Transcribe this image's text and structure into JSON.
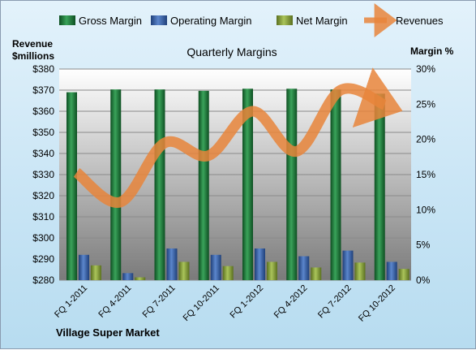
{
  "chart_data": {
    "type": "bar",
    "title": "Quarterly Margins",
    "footer": "Village Super Market",
    "left_axis_label_line1": "Revenue",
    "left_axis_label_line2": "$millions",
    "right_axis_label": "Margin %",
    "categories": [
      "FQ 1-2011",
      "FQ 4-2011",
      "FQ 7-2011",
      "FQ 10-2011",
      "FQ 1-2012",
      "FQ 4-2012",
      "FQ 7-2012",
      "FQ 10-2012"
    ],
    "series": [
      {
        "name": "Gross Margin",
        "axis": "right",
        "type": "bar",
        "color": "#1f7a3a",
        "values": [
          26.7,
          27.1,
          27.1,
          26.9,
          27.2,
          27.2,
          27.1,
          26.5
        ]
      },
      {
        "name": "Operating Margin",
        "axis": "right",
        "type": "bar",
        "color": "#3a63a8",
        "values": [
          3.6,
          1.0,
          4.5,
          3.6,
          4.5,
          3.4,
          4.2,
          2.6
        ]
      },
      {
        "name": "Net Margin",
        "axis": "right",
        "type": "bar",
        "color": "#8ca63e",
        "values": [
          2.1,
          0.4,
          2.6,
          2.0,
          2.6,
          1.8,
          2.5,
          1.6
        ]
      },
      {
        "name": "Revenues",
        "axis": "left",
        "type": "line",
        "color": "#e8853b",
        "values": [
          331,
          317,
          345,
          339,
          360,
          341,
          370,
          363
        ]
      }
    ],
    "y_left": {
      "min": 280,
      "max": 380,
      "step": 10,
      "prefix": "$",
      "ticks": [
        "$280",
        "$290",
        "$300",
        "$310",
        "$320",
        "$330",
        "$340",
        "$350",
        "$360",
        "$370",
        "$380"
      ]
    },
    "y_right": {
      "min": 0,
      "max": 30,
      "step": 5,
      "ticks": [
        "0%",
        "5%",
        "10%",
        "15%",
        "20%",
        "25%",
        "30%"
      ]
    },
    "grid": true,
    "legend_position": "top"
  }
}
